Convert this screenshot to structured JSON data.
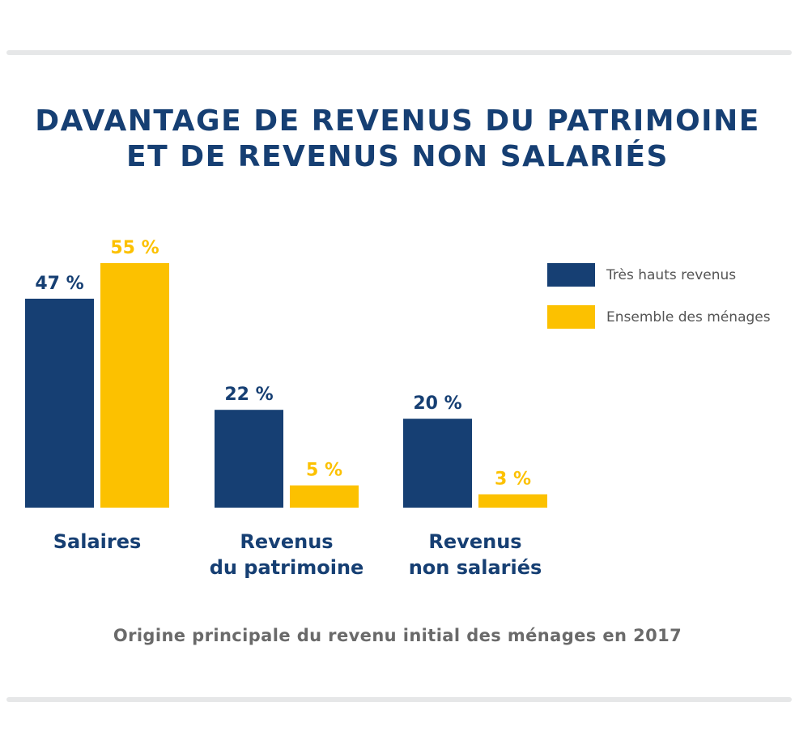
{
  "title": [
    "DAVANTAGE DE REVENUS DU PATRIMOINE",
    "ET DE REVENUS NON SALARIÉS"
  ],
  "caption": "Origine principale du revenu initial des ménages en 2017",
  "colors": {
    "navy": "#163f73",
    "yellow": "#fcc100",
    "text_gray": "#6a6a6a",
    "rule": "#e6e7e8"
  },
  "chart_data": {
    "type": "bar",
    "categories": [
      [
        "Salaires"
      ],
      [
        "Revenus",
        "du patrimoine"
      ],
      [
        "Revenus",
        "non salariés"
      ]
    ],
    "series": [
      {
        "name": "Très hauts revenus",
        "color": "#163f73",
        "values": [
          47,
          22,
          20
        ],
        "labels": [
          "47 %",
          "22 %",
          "20 %"
        ]
      },
      {
        "name": "Ensemble des ménages",
        "color": "#fcc100",
        "values": [
          55,
          5,
          3
        ],
        "labels": [
          "55 %",
          "5 %",
          "3 %"
        ]
      }
    ],
    "ylim": [
      0,
      55
    ],
    "grid": false,
    "legend_position": "top-right"
  }
}
